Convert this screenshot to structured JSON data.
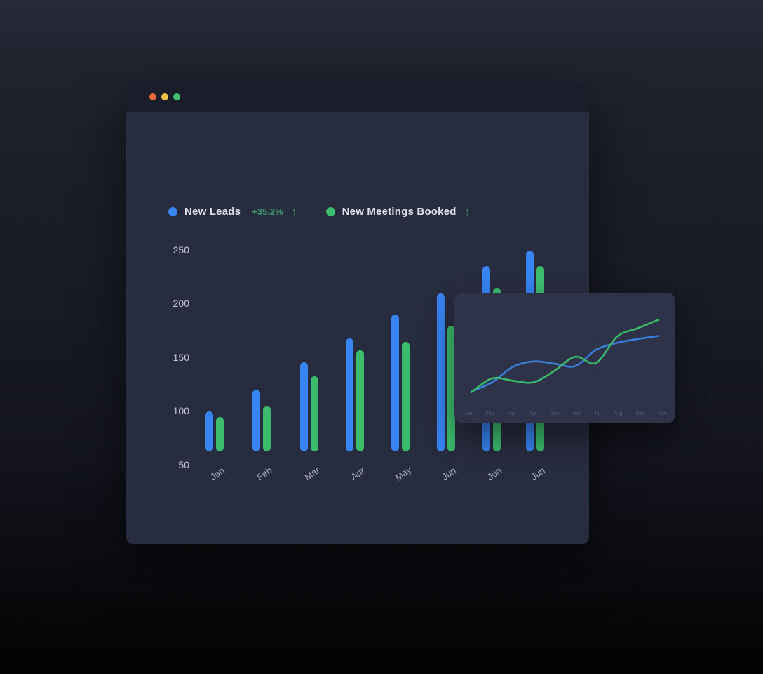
{
  "window": {
    "title": ""
  },
  "legend": {
    "series": [
      {
        "label": "New Leads",
        "color": "#3884f2",
        "delta": "+35.2%",
        "arrow": "↑"
      },
      {
        "label": "New Meetings Booked",
        "color": "#3cbd6e",
        "delta": "",
        "arrow": "↑"
      }
    ]
  },
  "chart_data": [
    {
      "type": "bar",
      "title": "",
      "categories": [
        "Jan",
        "Feb",
        "Mar",
        "Apr",
        "May",
        "Jun",
        "Jun",
        "Jun"
      ],
      "series": [
        {
          "name": "New Leads",
          "color": "#3884f2",
          "values": [
            100,
            120,
            146,
            168,
            190,
            210,
            235,
            250
          ]
        },
        {
          "name": "New Meetings Booked",
          "color": "#3cbd6e",
          "values": [
            95,
            105,
            133,
            157,
            165,
            180,
            215,
            235
          ]
        }
      ],
      "xlabel": "",
      "ylabel": "",
      "ylim": [
        50,
        250
      ],
      "yticks": [
        250,
        200,
        150,
        100,
        50
      ],
      "grid": false,
      "legend_position": "top"
    },
    {
      "type": "line",
      "title": "",
      "categories": [
        "Jan",
        "Feb",
        "Mar",
        "Apr",
        "May",
        "Jun",
        "Jul",
        "Aug",
        "Sep",
        "Oct"
      ],
      "series": [
        {
          "name": "New Leads",
          "color": "#3a7fd9",
          "values": [
            3,
            15,
            35,
            42,
            39,
            36,
            57,
            66,
            71,
            75
          ]
        },
        {
          "name": "New Meetings Booked",
          "color": "#3cba6c",
          "values": [
            2,
            20,
            17,
            15,
            30,
            48,
            40,
            74,
            85,
            96
          ]
        }
      ],
      "xlabel": "",
      "ylabel": "",
      "ylim": [
        0,
        100
      ],
      "grid": true,
      "legend_position": "none"
    }
  ]
}
